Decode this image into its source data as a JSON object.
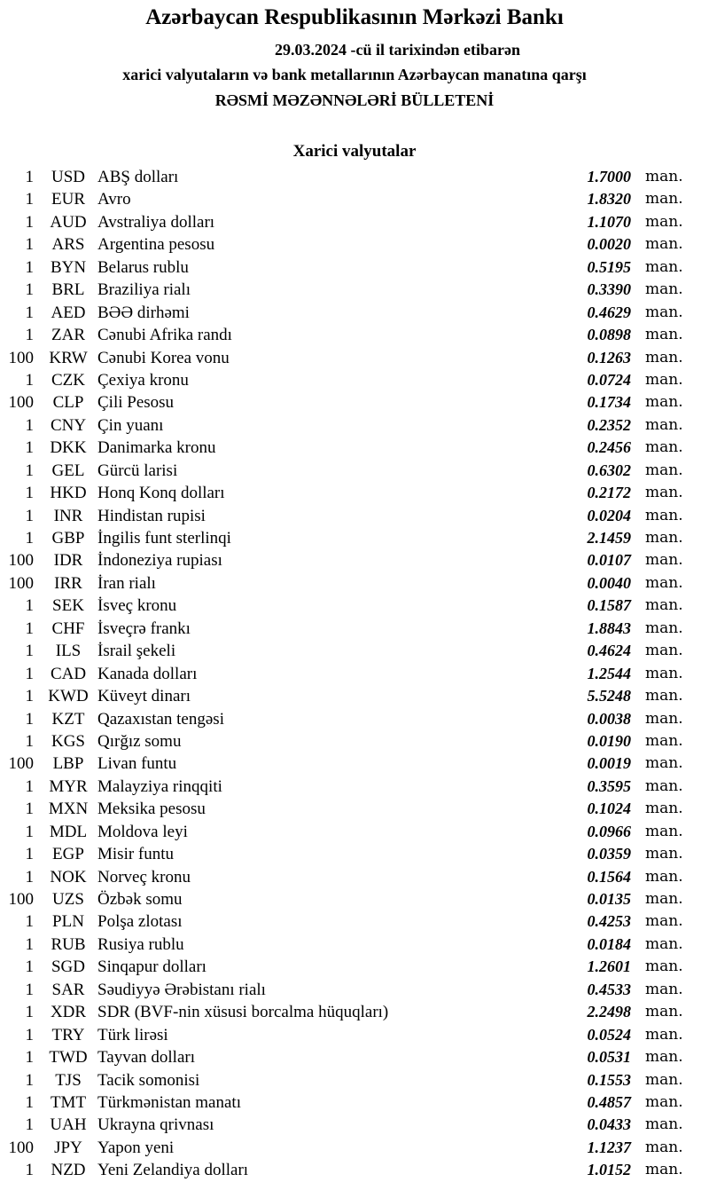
{
  "header": {
    "title": "Azərbaycan Respublikasının Mərkəzi Bankı",
    "date_line": "29.03.2024 -cü il tarixindən etibarən",
    "subtitle": "xarici valyutaların və bank metallarının Azərbaycan manatına qarşı",
    "bulletin": "RƏSMİ MƏZƏNNƏLƏRİ BÜLLETENİ",
    "section": "Xarici valyutalar"
  },
  "unit": "man.",
  "rates": [
    {
      "qty": "1",
      "code": "USD",
      "name": "ABŞ dolları",
      "value": "1.7000"
    },
    {
      "qty": "1",
      "code": "EUR",
      "name": "Avro",
      "value": "1.8320"
    },
    {
      "qty": "1",
      "code": "AUD",
      "name": "Avstraliya dolları",
      "value": "1.1070"
    },
    {
      "qty": "1",
      "code": "ARS",
      "name": "Argentina pesosu",
      "value": "0.0020"
    },
    {
      "qty": "1",
      "code": "BYN",
      "name": "Belarus rublu",
      "value": "0.5195"
    },
    {
      "qty": "1",
      "code": "BRL",
      "name": "Braziliya rialı",
      "value": "0.3390"
    },
    {
      "qty": "1",
      "code": "AED",
      "name": "BƏƏ dirhəmi",
      "value": "0.4629"
    },
    {
      "qty": "1",
      "code": "ZAR",
      "name": "Cənubi Afrika randı",
      "value": "0.0898"
    },
    {
      "qty": "100",
      "code": "KRW",
      "name": "Cənubi Korea vonu",
      "value": "0.1263"
    },
    {
      "qty": "1",
      "code": "CZK",
      "name": "Çexiya kronu",
      "value": "0.0724"
    },
    {
      "qty": "100",
      "code": "CLP",
      "name": "Çili Pesosu",
      "value": "0.1734"
    },
    {
      "qty": "1",
      "code": "CNY",
      "name": "Çin yuanı",
      "value": "0.2352"
    },
    {
      "qty": "1",
      "code": "DKK",
      "name": "Danimarka kronu",
      "value": "0.2456"
    },
    {
      "qty": "1",
      "code": "GEL",
      "name": "Gürcü larisi",
      "value": "0.6302"
    },
    {
      "qty": "1",
      "code": "HKD",
      "name": "Honq Konq dolları",
      "value": "0.2172"
    },
    {
      "qty": "1",
      "code": "INR",
      "name": "Hindistan rupisi",
      "value": "0.0204"
    },
    {
      "qty": "1",
      "code": "GBP",
      "name": "İngilis funt sterlinqi",
      "value": "2.1459"
    },
    {
      "qty": "100",
      "code": "IDR",
      "name": "İndoneziya rupiası",
      "value": "0.0107"
    },
    {
      "qty": "100",
      "code": "IRR",
      "name": "İran rialı",
      "value": "0.0040"
    },
    {
      "qty": "1",
      "code": "SEK",
      "name": "İsveç kronu",
      "value": "0.1587"
    },
    {
      "qty": "1",
      "code": "CHF",
      "name": "İsveçrə frankı",
      "value": "1.8843"
    },
    {
      "qty": "1",
      "code": "ILS",
      "name": "İsrail şekeli",
      "value": "0.4624"
    },
    {
      "qty": "1",
      "code": "CAD",
      "name": "Kanada dolları",
      "value": "1.2544"
    },
    {
      "qty": "1",
      "code": "KWD",
      "name": "Küveyt dinarı",
      "value": "5.5248"
    },
    {
      "qty": "1",
      "code": "KZT",
      "name": "Qazaxıstan tengəsi",
      "value": "0.0038"
    },
    {
      "qty": "1",
      "code": "KGS",
      "name": "Qırğız somu",
      "value": "0.0190"
    },
    {
      "qty": "100",
      "code": "LBP",
      "name": "Livan funtu",
      "value": "0.0019"
    },
    {
      "qty": "1",
      "code": "MYR",
      "name": "Malayziya rinqqiti",
      "value": "0.3595"
    },
    {
      "qty": "1",
      "code": "MXN",
      "name": "Meksika pesosu",
      "value": "0.1024"
    },
    {
      "qty": "1",
      "code": "MDL",
      "name": "Moldova leyi",
      "value": "0.0966"
    },
    {
      "qty": "1",
      "code": "EGP",
      "name": "Misir funtu",
      "value": "0.0359"
    },
    {
      "qty": "1",
      "code": "NOK",
      "name": "Norveç kronu",
      "value": "0.1564"
    },
    {
      "qty": "100",
      "code": "UZS",
      "name": "Özbək somu",
      "value": "0.0135"
    },
    {
      "qty": "1",
      "code": "PLN",
      "name": "Polşa zlotası",
      "value": "0.4253"
    },
    {
      "qty": "1",
      "code": "RUB",
      "name": "Rusiya rublu",
      "value": "0.0184"
    },
    {
      "qty": "1",
      "code": "SGD",
      "name": "Sinqapur dolları",
      "value": "1.2601"
    },
    {
      "qty": "1",
      "code": "SAR",
      "name": "Səudiyyə Ərəbistanı rialı",
      "value": "0.4533"
    },
    {
      "qty": "1",
      "code": "XDR",
      "name": "SDR (BVF-nin xüsusi borcalma hüquqları)",
      "value": "2.2498"
    },
    {
      "qty": "1",
      "code": "TRY",
      "name": "Türk lirəsi",
      "value": "0.0524"
    },
    {
      "qty": "1",
      "code": "TWD",
      "name": "Tayvan dolları",
      "value": "0.0531"
    },
    {
      "qty": "1",
      "code": "TJS",
      "name": "Tacik somonisi",
      "value": "0.1553"
    },
    {
      "qty": "1",
      "code": "TMT",
      "name": "Türkmənistan manatı",
      "value": "0.4857"
    },
    {
      "qty": "1",
      "code": "UAH",
      "name": "Ukrayna qrivnası",
      "value": "0.0433"
    },
    {
      "qty": "100",
      "code": "JPY",
      "name": "Yapon yeni",
      "value": "1.1237"
    },
    {
      "qty": "1",
      "code": "NZD",
      "name": "Yeni Zelandiya dolları",
      "value": "1.0152"
    }
  ]
}
